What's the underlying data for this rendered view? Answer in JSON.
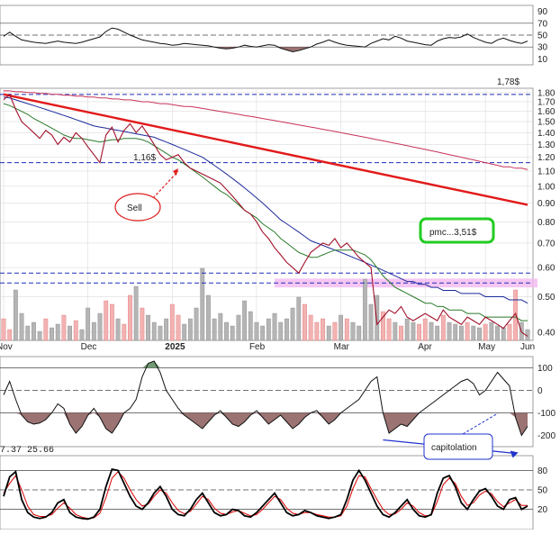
{
  "chart_data": [
    {
      "type": "line",
      "panel": "RSI (top)",
      "y_ticks": [
        "90",
        "70",
        "50",
        "30",
        "10"
      ],
      "ylim": [
        0,
        100
      ],
      "reference_lines": [
        70,
        50,
        30
      ],
      "values": [
        48,
        55,
        48,
        42,
        40,
        38,
        37,
        36,
        38,
        40,
        38,
        37,
        36,
        38,
        41,
        44,
        47,
        56,
        62,
        60,
        55,
        50,
        46,
        42,
        40,
        38,
        36,
        35,
        33,
        34,
        36,
        35,
        34,
        33,
        32,
        30,
        28,
        27,
        28,
        30,
        33,
        31,
        30,
        32,
        34,
        33,
        28,
        25,
        22,
        24,
        27,
        30,
        35,
        38,
        42,
        38,
        35,
        33,
        32,
        31,
        30,
        36,
        40,
        44,
        42,
        48,
        45,
        40,
        38,
        36,
        34,
        33,
        40,
        44,
        46,
        45,
        47,
        52,
        46,
        42,
        38,
        36,
        42,
        45,
        41,
        38,
        36,
        40
      ]
    },
    {
      "type": "line",
      "panel": "price",
      "title": "1,78$",
      "y_ticks": [
        "1.80",
        "1.70",
        "1.60",
        "1.50",
        "1.40",
        "1.30",
        "1.20",
        "1.10",
        "1.00",
        "0.90",
        "0.80",
        "0.70",
        "0.60",
        "0.50",
        "0.40"
      ],
      "ylim": [
        0.38,
        1.85
      ],
      "x_ticks": [
        "Nov",
        "Dec",
        "2025",
        "Feb",
        "Mar",
        "Apr",
        "May",
        "Jun"
      ],
      "hlines": [
        1.78,
        1.16,
        0.58,
        0.545
      ],
      "pink_band": [
        0.53,
        0.56
      ],
      "trendline": {
        "x": [
          0,
          87
        ],
        "y": [
          1.78,
          0.89
        ]
      },
      "price": [
        1.72,
        1.78,
        1.62,
        1.5,
        1.45,
        1.4,
        1.35,
        1.42,
        1.38,
        1.3,
        1.36,
        1.32,
        1.4,
        1.35,
        1.28,
        1.22,
        1.16,
        1.38,
        1.45,
        1.32,
        1.42,
        1.48,
        1.4,
        1.46,
        1.38,
        1.3,
        1.22,
        1.18,
        1.2,
        1.22,
        1.16,
        1.12,
        1.1,
        1.08,
        1.06,
        1.04,
        1.02,
        0.98,
        0.94,
        0.9,
        0.86,
        0.84,
        0.8,
        0.75,
        0.72,
        0.68,
        0.65,
        0.62,
        0.6,
        0.58,
        0.62,
        0.66,
        0.68,
        0.7,
        0.69,
        0.72,
        0.68,
        0.7,
        0.67,
        0.64,
        0.62,
        0.6,
        0.42,
        0.44,
        0.46,
        0.45,
        0.47,
        0.44,
        0.43,
        0.44,
        0.45,
        0.44,
        0.43,
        0.46,
        0.44,
        0.43,
        0.42,
        0.44,
        0.43,
        0.42,
        0.44,
        0.43,
        0.42,
        0.41,
        0.43,
        0.45,
        0.4,
        0.39
      ],
      "ma_fast": [
        1.68,
        1.66,
        1.63,
        1.6,
        1.57,
        1.53,
        1.5,
        1.47,
        1.44,
        1.41,
        1.38,
        1.36,
        1.35,
        1.35,
        1.34,
        1.33,
        1.32,
        1.33,
        1.34,
        1.34,
        1.35,
        1.35,
        1.35,
        1.34,
        1.32,
        1.29,
        1.26,
        1.23,
        1.2,
        1.18,
        1.15,
        1.12,
        1.09,
        1.06,
        1.03,
        1.0,
        0.97,
        0.95,
        0.92,
        0.89,
        0.86,
        0.84,
        0.82,
        0.79,
        0.77,
        0.75,
        0.72,
        0.7,
        0.68,
        0.66,
        0.65,
        0.64,
        0.64,
        0.65,
        0.66,
        0.67,
        0.67,
        0.67,
        0.67,
        0.66,
        0.65,
        0.63,
        0.6,
        0.57,
        0.55,
        0.53,
        0.52,
        0.51,
        0.5,
        0.49,
        0.48,
        0.48,
        0.47,
        0.47,
        0.46,
        0.46,
        0.46,
        0.45,
        0.45,
        0.45,
        0.44,
        0.44,
        0.44,
        0.44,
        0.44,
        0.44,
        0.43,
        0.43
      ],
      "ma_mid": [
        1.75,
        1.74,
        1.72,
        1.7,
        1.68,
        1.66,
        1.64,
        1.62,
        1.6,
        1.58,
        1.56,
        1.54,
        1.52,
        1.5,
        1.48,
        1.46,
        1.45,
        1.44,
        1.43,
        1.42,
        1.41,
        1.4,
        1.39,
        1.38,
        1.37,
        1.36,
        1.34,
        1.32,
        1.3,
        1.28,
        1.26,
        1.24,
        1.22,
        1.2,
        1.17,
        1.14,
        1.11,
        1.08,
        1.05,
        1.02,
        0.99,
        0.96,
        0.93,
        0.9,
        0.87,
        0.84,
        0.81,
        0.79,
        0.77,
        0.75,
        0.73,
        0.71,
        0.7,
        0.69,
        0.68,
        0.67,
        0.66,
        0.65,
        0.64,
        0.63,
        0.62,
        0.61,
        0.6,
        0.59,
        0.58,
        0.57,
        0.56,
        0.55,
        0.55,
        0.54,
        0.54,
        0.53,
        0.53,
        0.52,
        0.52,
        0.52,
        0.51,
        0.51,
        0.51,
        0.51,
        0.5,
        0.5,
        0.5,
        0.5,
        0.49,
        0.49,
        0.49,
        0.48
      ],
      "ma_slow": [
        1.82,
        1.82,
        1.81,
        1.81,
        1.8,
        1.8,
        1.79,
        1.79,
        1.78,
        1.78,
        1.77,
        1.77,
        1.76,
        1.76,
        1.75,
        1.75,
        1.74,
        1.74,
        1.73,
        1.73,
        1.72,
        1.72,
        1.71,
        1.7,
        1.7,
        1.69,
        1.68,
        1.68,
        1.67,
        1.66,
        1.65,
        1.65,
        1.64,
        1.63,
        1.62,
        1.61,
        1.6,
        1.59,
        1.58,
        1.57,
        1.56,
        1.55,
        1.54,
        1.53,
        1.52,
        1.51,
        1.5,
        1.49,
        1.48,
        1.47,
        1.46,
        1.45,
        1.44,
        1.43,
        1.42,
        1.41,
        1.4,
        1.39,
        1.38,
        1.37,
        1.36,
        1.35,
        1.34,
        1.33,
        1.32,
        1.31,
        1.3,
        1.29,
        1.28,
        1.27,
        1.26,
        1.25,
        1.24,
        1.23,
        1.22,
        1.21,
        1.2,
        1.19,
        1.18,
        1.17,
        1.16,
        1.15,
        1.14,
        1.13,
        1.13,
        1.12,
        1.12,
        1.11
      ],
      "volume": [
        0.12,
        0.06,
        0.28,
        0.15,
        0.08,
        0.1,
        0.05,
        0.12,
        0.07,
        0.09,
        0.14,
        0.08,
        0.11,
        0.06,
        0.18,
        0.1,
        0.15,
        0.22,
        0.2,
        0.12,
        0.09,
        0.25,
        0.3,
        0.18,
        0.14,
        0.1,
        0.08,
        0.12,
        0.2,
        0.14,
        0.09,
        0.12,
        0.18,
        0.4,
        0.25,
        0.12,
        0.15,
        0.1,
        0.08,
        0.14,
        0.22,
        0.16,
        0.1,
        0.08,
        0.12,
        0.15,
        0.1,
        0.12,
        0.18,
        0.24,
        0.2,
        0.14,
        0.1,
        0.12,
        0.08,
        0.1,
        0.14,
        0.12,
        0.1,
        0.08,
        0.34,
        0.2,
        0.25,
        0.16,
        0.12,
        0.1,
        0.08,
        0.12,
        0.1,
        0.09,
        0.12,
        0.1,
        0.08,
        0.14,
        0.1,
        0.09,
        0.08,
        0.1,
        0.08,
        0.07,
        0.09,
        0.1,
        0.08,
        0.07,
        0.09,
        0.28,
        0.1,
        0.06
      ],
      "annotations": {
        "price_label": "1,16$",
        "sell_label": "Sell",
        "pmc_label": "pmc...3,51$"
      }
    },
    {
      "type": "area",
      "panel": "CCI",
      "y_ticks": [
        "100",
        "0",
        "-100",
        "-200"
      ],
      "ylim": [
        -250,
        150
      ],
      "values": [
        -20,
        40,
        -40,
        -110,
        -140,
        -150,
        -145,
        -130,
        -100,
        -60,
        -80,
        -150,
        -190,
        -160,
        -110,
        -80,
        -120,
        -170,
        -190,
        -150,
        -100,
        -80,
        -40,
        60,
        120,
        130,
        80,
        0,
        -40,
        -80,
        -110,
        -130,
        -150,
        -170,
        -140,
        -110,
        -90,
        -120,
        -150,
        -160,
        -140,
        -110,
        -90,
        -120,
        -150,
        -130,
        -110,
        -140,
        -170,
        -150,
        -120,
        -100,
        -90,
        -120,
        -150,
        -130,
        -100,
        -80,
        -60,
        -40,
        0,
        40,
        60,
        -100,
        -190,
        -170,
        -150,
        -160,
        -130,
        -100,
        -80,
        -60,
        -40,
        -20,
        0,
        20,
        40,
        50,
        30,
        -20,
        0,
        40,
        80,
        50,
        20,
        -120,
        -200,
        -160
      ],
      "annotation": "capitolation",
      "trend_from_index": 63,
      "trend_to_index": 85
    },
    {
      "type": "line",
      "panel": "Stochastic",
      "header_values": [
        "7.37",
        "25.66"
      ],
      "y_ticks": [
        "80",
        "50",
        "20"
      ],
      "ylim": [
        0,
        100
      ],
      "series": [
        {
          "values": [
            40,
            70,
            78,
            35,
            15,
            8,
            6,
            8,
            15,
            30,
            35,
            15,
            8,
            6,
            5,
            8,
            20,
            55,
            82,
            80,
            60,
            40,
            25,
            20,
            30,
            45,
            55,
            40,
            20,
            12,
            10,
            20,
            35,
            45,
            30,
            15,
            10,
            12,
            20,
            18,
            10,
            8,
            15,
            25,
            35,
            45,
            30,
            15,
            10,
            12,
            18,
            15,
            10,
            8,
            6,
            8,
            12,
            35,
            65,
            80,
            65,
            45,
            25,
            12,
            8,
            15,
            25,
            35,
            20,
            10,
            8,
            12,
            45,
            68,
            72,
            55,
            30,
            20,
            35,
            48,
            52,
            40,
            25,
            20,
            35,
            38,
            20,
            25
          ]
        },
        {
          "values": [
            45,
            60,
            72,
            50,
            25,
            12,
            9,
            9,
            12,
            22,
            30,
            22,
            12,
            8,
            6,
            7,
            14,
            38,
            68,
            78,
            68,
            50,
            35,
            25,
            28,
            40,
            50,
            45,
            30,
            18,
            13,
            17,
            28,
            40,
            35,
            22,
            14,
            12,
            16,
            18,
            14,
            10,
            12,
            20,
            30,
            40,
            35,
            22,
            14,
            12,
            15,
            15,
            12,
            10,
            8,
            8,
            10,
            25,
            52,
            72,
            70,
            52,
            35,
            20,
            12,
            13,
            20,
            30,
            25,
            15,
            10,
            11,
            32,
            58,
            68,
            60,
            40,
            26,
            30,
            42,
            48,
            44,
            32,
            24,
            30,
            35,
            26,
            26
          ]
        }
      ]
    }
  ]
}
